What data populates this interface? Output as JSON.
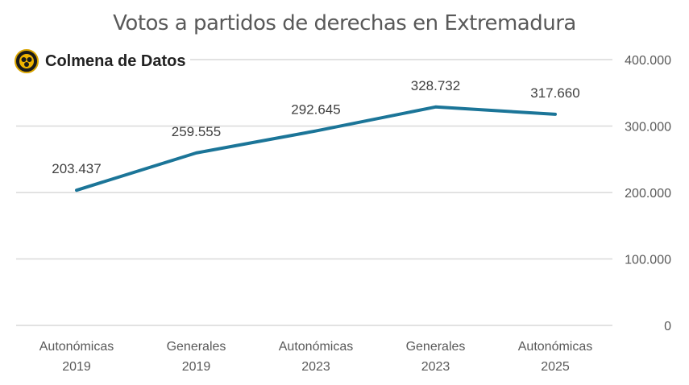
{
  "brand": {
    "name": "Colmena de Datos"
  },
  "chart_data": {
    "type": "line",
    "title": "Votos a partidos de derechas en Extremadura",
    "categories": [
      [
        "Autonómicas",
        "2019"
      ],
      [
        "Generales",
        "2019"
      ],
      [
        "Autonómicas",
        "2023"
      ],
      [
        "Generales",
        "2023"
      ],
      [
        "Autonómicas",
        "2025"
      ]
    ],
    "values": [
      203437,
      259555,
      292645,
      328732,
      317660
    ],
    "data_labels": [
      "203.437",
      "259.555",
      "292.645",
      "328.732",
      "317.660"
    ],
    "ylim": [
      0,
      400000
    ],
    "yticks": [
      0,
      100000,
      200000,
      300000,
      400000
    ],
    "ytick_labels": [
      "0",
      "100.000",
      "200.000",
      "300.000",
      "400.000"
    ],
    "y_axis_side": "right",
    "grid": true,
    "line_color": "#1b7598",
    "grid_color": "#d9d9d9"
  }
}
